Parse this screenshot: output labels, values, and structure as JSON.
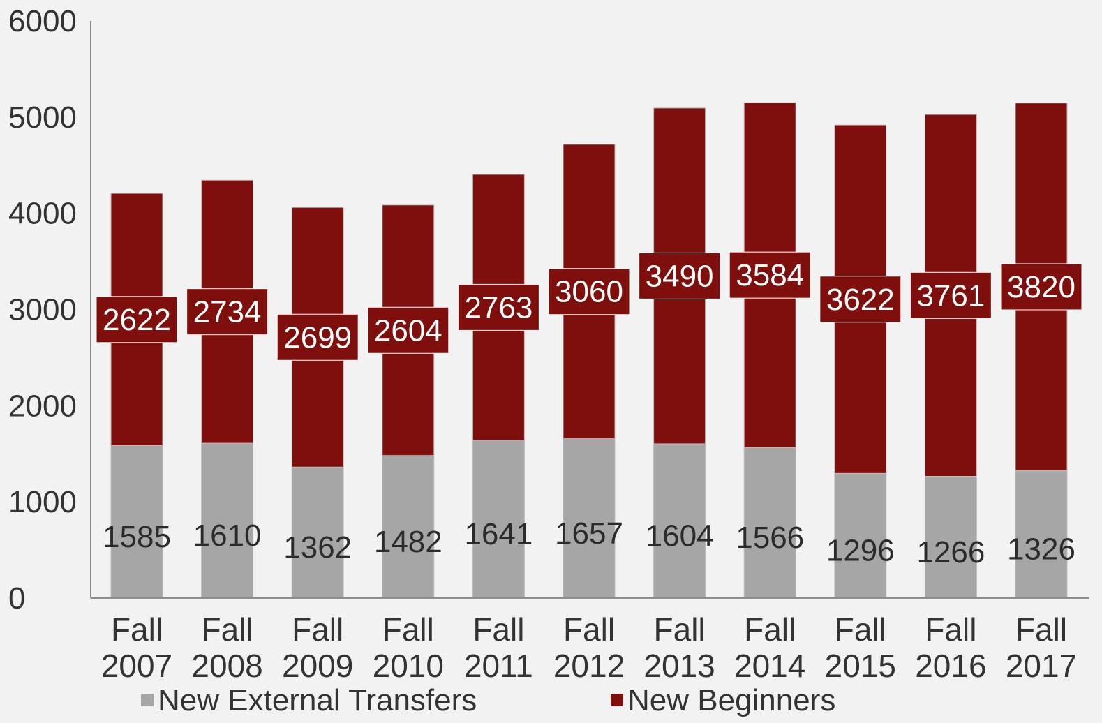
{
  "chart_data": {
    "type": "bar",
    "stacked": true,
    "categories": [
      "Fall 2007",
      "Fall 2008",
      "Fall 2009",
      "Fall 2010",
      "Fall 2011",
      "Fall 2012",
      "Fall 2013",
      "Fall 2014",
      "Fall 2015",
      "Fall 2016",
      "Fall 2017"
    ],
    "series": [
      {
        "name": "New External Transfers",
        "color": "#a6a6a6",
        "values": [
          1585,
          1610,
          1362,
          1482,
          1641,
          1657,
          1604,
          1566,
          1296,
          1266,
          1326
        ]
      },
      {
        "name": "New Beginners",
        "color": "#7f0f0c",
        "values": [
          2622,
          2734,
          2699,
          2604,
          2763,
          3060,
          3490,
          3584,
          3622,
          3761,
          3820
        ]
      }
    ],
    "ylim": [
      0,
      6000
    ],
    "yticks": [
      0,
      1000,
      2000,
      3000,
      4000,
      5000,
      6000
    ],
    "grid": false,
    "legend": "bottom",
    "title": "",
    "xlabel": "",
    "ylabel": ""
  }
}
